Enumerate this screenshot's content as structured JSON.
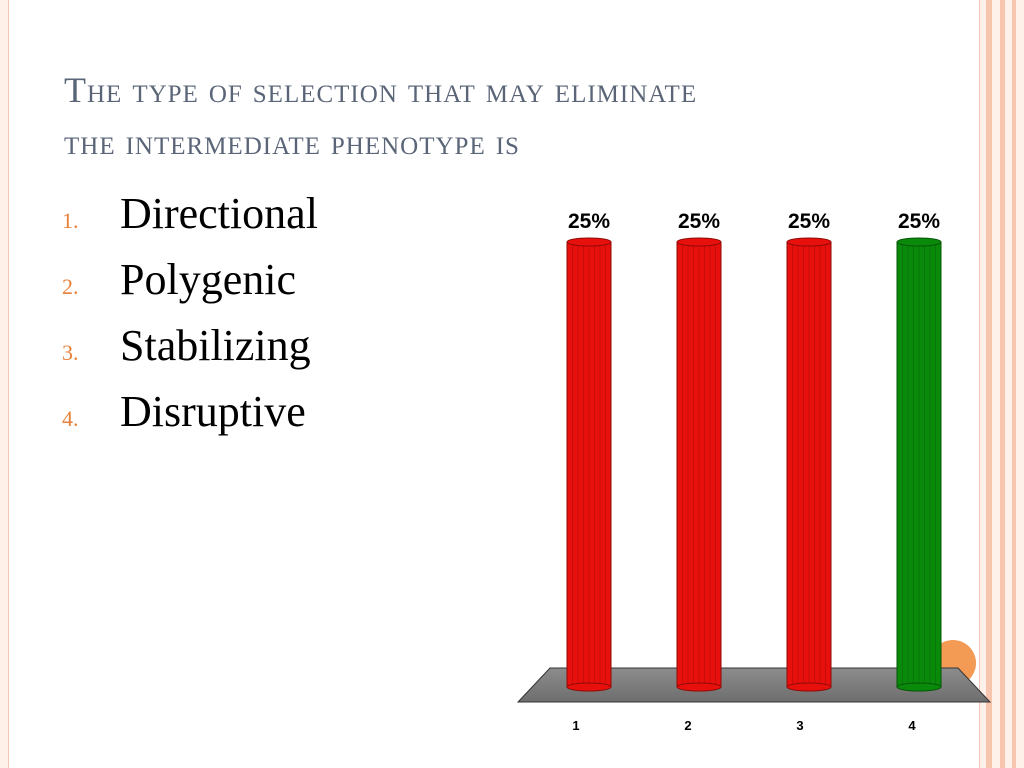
{
  "slide": {
    "title_line1": "The type of selection that may eliminate",
    "title_line2": "the intermediate phenotype is"
  },
  "options": [
    {
      "number": "1.",
      "label": "Directional"
    },
    {
      "number": "2.",
      "label": "Polygenic"
    },
    {
      "number": "3.",
      "label": "Stabilizing"
    },
    {
      "number": "4.",
      "label": "Disruptive"
    }
  ],
  "chart_data": {
    "type": "bar",
    "categories": [
      "1",
      "2",
      "3",
      "4"
    ],
    "values": [
      25,
      25,
      25,
      25
    ],
    "data_labels": [
      "25%",
      "25%",
      "25%",
      "25%"
    ],
    "bar_colors": [
      "#e8100c",
      "#e8100c",
      "#e8100c",
      "#0a8a0a"
    ],
    "ylim": [
      0,
      25
    ],
    "grid": false,
    "legend": "none"
  }
}
